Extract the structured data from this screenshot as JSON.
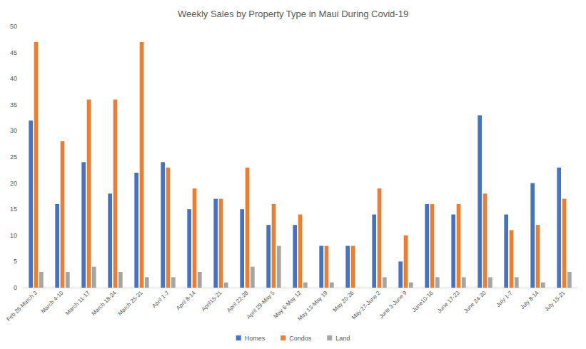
{
  "chart_data": {
    "type": "bar",
    "title": "Weekly Sales by Property Type in Maui During Covid-19",
    "categories": [
      "Feb 26-March 3",
      "March 4-10",
      "March 11-17",
      "March 18-24",
      "March 25-31",
      "April 1-7",
      "April 8-14",
      "April15-21",
      "April 22-28",
      "April 29-May 5",
      "May 6-May 12",
      "May 13-May 19",
      "May 20-26",
      "May 27-June 2",
      "June 3-June 9",
      "June10-16",
      "June 17-23",
      "June 24-30",
      "July 1-7",
      "July 8-14",
      "July 15-21"
    ],
    "series": [
      {
        "name": "Homes",
        "color": "#4472c4",
        "values": [
          32,
          16,
          24,
          18,
          22,
          24,
          15,
          17,
          15,
          12,
          12,
          8,
          8,
          14,
          5,
          16,
          14,
          33,
          14,
          20,
          23
        ]
      },
      {
        "name": "Condos",
        "color": "#ed7d31",
        "values": [
          47,
          28,
          36,
          36,
          47,
          23,
          19,
          17,
          23,
          16,
          14,
          8,
          8,
          19,
          10,
          16,
          16,
          18,
          11,
          12,
          17
        ]
      },
      {
        "name": "Land",
        "color": "#a5a5a5",
        "values": [
          3,
          3,
          4,
          3,
          2,
          2,
          3,
          1,
          4,
          8,
          1,
          1,
          0,
          2,
          1,
          2,
          2,
          2,
          2,
          1,
          3
        ]
      }
    ],
    "ylim": [
      0,
      50
    ],
    "yticks": [
      0,
      5,
      10,
      15,
      20,
      25,
      30,
      35,
      40,
      45,
      50
    ],
    "grid": false,
    "legend": "bottom"
  }
}
